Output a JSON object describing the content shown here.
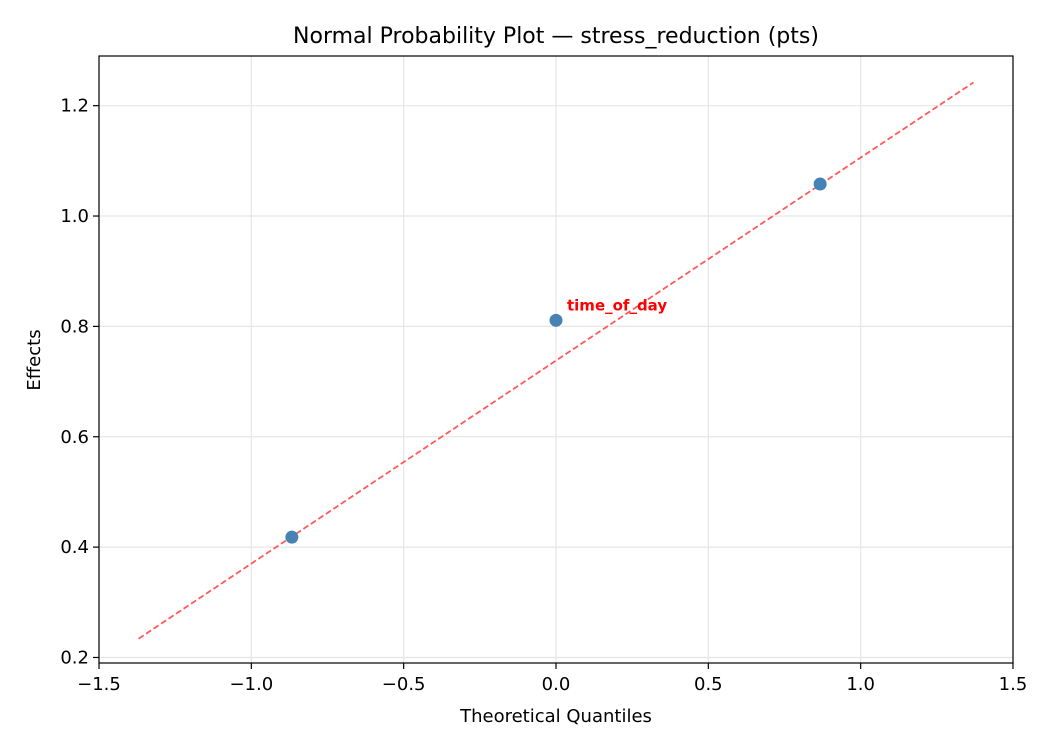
{
  "chart_data": {
    "type": "scatter",
    "title": "Normal Probability Plot — stress_reduction (pts)",
    "xlabel": "Theoretical Quantiles",
    "ylabel": "Effects",
    "xlim": [
      -1.5,
      1.5
    ],
    "ylim": [
      0.19,
      1.29
    ],
    "xticks": [
      -1.5,
      -1.0,
      -0.5,
      0.0,
      0.5,
      1.0,
      1.5
    ],
    "xtick_labels": [
      "−1.5",
      "−1.0",
      "−0.5",
      "0.0",
      "0.5",
      "1.0",
      "1.5"
    ],
    "yticks": [
      0.2,
      0.4,
      0.6,
      0.8,
      1.0,
      1.2
    ],
    "ytick_labels": [
      "0.2",
      "0.4",
      "0.6",
      "0.8",
      "1.0",
      "1.2"
    ],
    "grid": true,
    "points": [
      {
        "x": -0.867,
        "y": 0.418,
        "label": ""
      },
      {
        "x": 0.0,
        "y": 0.811,
        "label": "time_of_day"
      },
      {
        "x": 0.867,
        "y": 1.058,
        "label": ""
      }
    ],
    "reference_line": {
      "x": [
        -1.37,
        1.37
      ],
      "y": [
        0.234,
        1.242
      ],
      "style": "dashed"
    },
    "colors": {
      "points": "#4682b4",
      "reference_line": "#ff5a5a",
      "annotation": "#ff0000",
      "grid": "#e6e6e6",
      "axes": "#000000"
    }
  }
}
